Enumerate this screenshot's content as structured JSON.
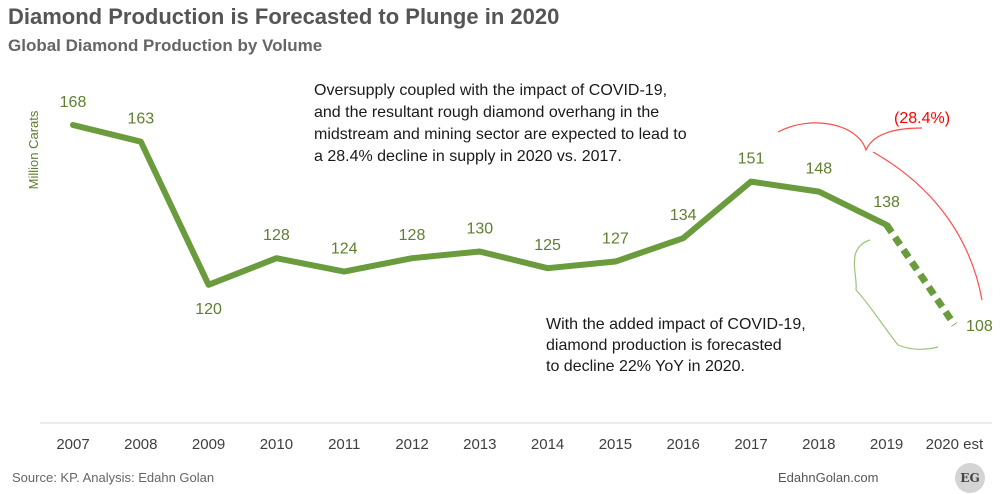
{
  "title": "Diamond Production is Forecasted to Plunge in 2020",
  "subtitle": "Global Diamond Production by Volume",
  "footer": {
    "source": "Source: KP. Analysis: Edahn Golan",
    "site": "EdahnGolan.com",
    "badge": "EG"
  },
  "colors": {
    "line": "#6a9b3c",
    "label": "#5e7f2f",
    "highlight": "#ff0000",
    "bracket_green": "#9bc47a",
    "bracket_red": "#ff4d4d"
  },
  "chart_data": {
    "type": "line",
    "title": "Diamond Production is Forecasted to Plunge in 2020",
    "subtitle": "Global Diamond Production by Volume",
    "xlabel": "",
    "ylabel": "Million Carats",
    "categories": [
      "2007",
      "2008",
      "2009",
      "2010",
      "2011",
      "2012",
      "2013",
      "2014",
      "2015",
      "2016",
      "2017",
      "2018",
      "2019",
      "2020 est"
    ],
    "values": [
      168,
      163,
      120,
      128,
      124,
      128,
      130,
      125,
      127,
      134,
      151,
      148,
      138,
      108
    ],
    "forecast_from_index": 12,
    "grid": false,
    "annotations": [
      {
        "text": [
          "Oversupply coupled with the impact of COVID-19,",
          "and the resultant rough diamond overhang in the",
          "midstream and mining sector are expected to lead to",
          "a 28.4% decline in supply in 2020 vs. 2017."
        ]
      },
      {
        "text": [
          "With the added impact of COVID-19,",
          "diamond production is forecasted",
          "to decline 22% YoY in 2020."
        ]
      },
      {
        "text": [
          "(28.4%)"
        ]
      }
    ]
  }
}
